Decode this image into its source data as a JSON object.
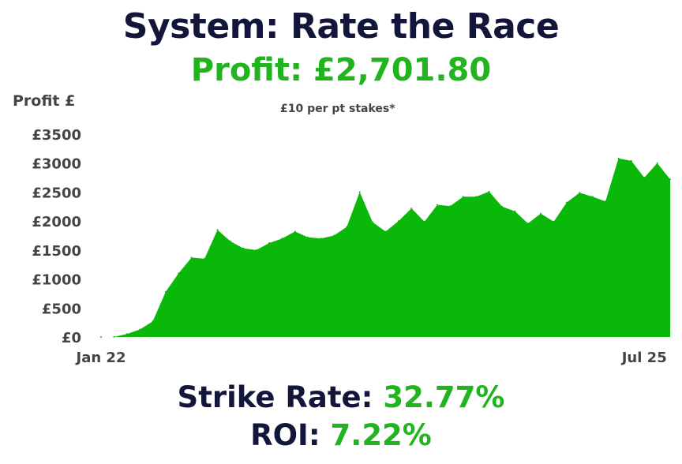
{
  "title": "System: Rate the Race",
  "profit": "Profit: £2,701.80",
  "stakes_note": "£10 per pt stakes*",
  "stats": {
    "strike_label": "Strike Rate:",
    "strike_value": "32.77%",
    "roi_label": "ROI:",
    "roi_value": "7.22%"
  },
  "colors": {
    "title": "#12163a",
    "accent": "#22b41e",
    "area": "#0ab80a",
    "axis_text": "#444444"
  },
  "chart_data": {
    "type": "area",
    "title": "",
    "xlabel": "",
    "ylabel": "Profit £",
    "ylim": [
      0,
      3500
    ],
    "yticks": [
      0,
      500,
      1000,
      1500,
      2000,
      2500,
      3000,
      3500
    ],
    "ytick_labels": [
      "£0",
      "£500",
      "£1000",
      "£1500",
      "£2000",
      "£2500",
      "£3000",
      "£3500"
    ],
    "xtick_labels": [
      "Jan 22",
      "Jul 25"
    ],
    "xtick_index": [
      0,
      42
    ],
    "grid": false,
    "legend": "none",
    "values": [
      0,
      0,
      50,
      130,
      270,
      780,
      1100,
      1370,
      1350,
      1850,
      1650,
      1530,
      1500,
      1620,
      1700,
      1820,
      1720,
      1700,
      1750,
      1900,
      2500,
      1980,
      1820,
      2000,
      2220,
      1990,
      2280,
      2260,
      2420,
      2420,
      2510,
      2250,
      2170,
      1960,
      2130,
      1990,
      2320,
      2490,
      2420,
      2340,
      3080,
      3040,
      2750,
      3000,
      2720
    ]
  }
}
